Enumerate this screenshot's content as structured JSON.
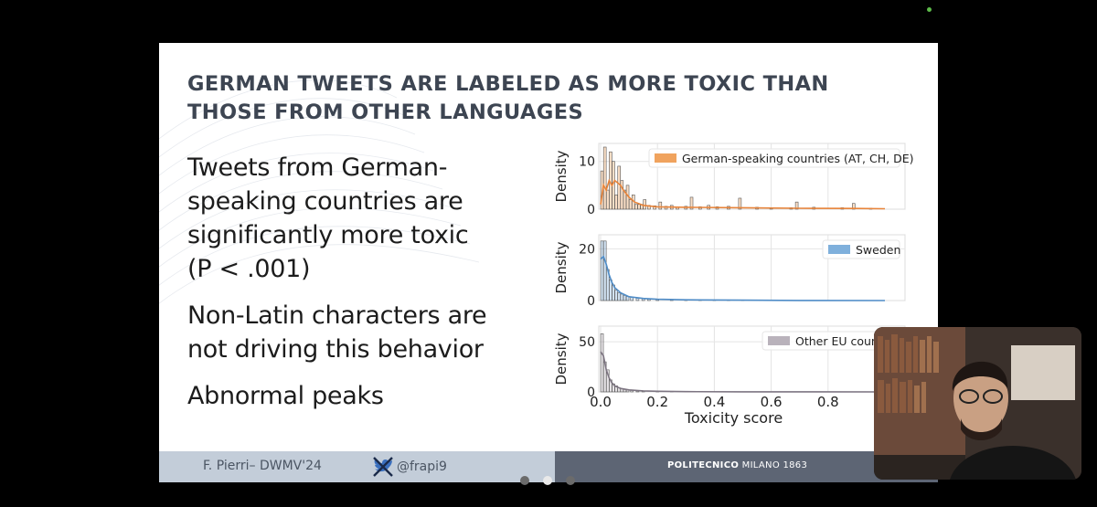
{
  "slide": {
    "title": "GERMAN TWEETS ARE LABELED AS MORE TOXIC THAN THOSE FROM OTHER LANGUAGES",
    "bullets": [
      "Tweets from German-speaking countries are significantly more toxic (P < .001)",
      "Non-Latin characters are not driving this behavior",
      "Abnormal peaks"
    ],
    "footer": {
      "author": "F. Pierri– DWMV'24",
      "handle": "@frapi9",
      "institution_bold": "POLITECNICO",
      "institution_rest": " MILANO 1863"
    }
  },
  "pagination": {
    "count": 3,
    "active": 2
  },
  "colors": {
    "title": "#3d4552",
    "german": "#f0a35e",
    "sweden": "#7fb0dc",
    "other": "#b9b2bb",
    "footer_left": "#c3cdd9",
    "footer_right": "#5d6574"
  },
  "chart_data": {
    "type": "histogram",
    "xlabel": "Toxicity score",
    "xlim": [
      0,
      1
    ],
    "xticks": [
      "0.0",
      "0.2",
      "0.4",
      "0.6",
      "0.8"
    ],
    "grid": true,
    "legend_position": "top-right",
    "panels": [
      {
        "legend": "German-speaking countries (AT, CH, DE)",
        "ylabel": "Density",
        "yticks": [
          "0",
          "10"
        ],
        "ylim": [
          0,
          13
        ],
        "bins": [
          [
            0.005,
            8
          ],
          [
            0.015,
            14
          ],
          [
            0.025,
            4
          ],
          [
            0.035,
            12
          ],
          [
            0.045,
            10
          ],
          [
            0.055,
            3
          ],
          [
            0.065,
            9
          ],
          [
            0.075,
            6
          ],
          [
            0.085,
            4
          ],
          [
            0.095,
            5
          ],
          [
            0.105,
            2
          ],
          [
            0.115,
            3
          ],
          [
            0.125,
            1
          ],
          [
            0.135,
            1
          ],
          [
            0.145,
            1
          ],
          [
            0.155,
            2
          ],
          [
            0.17,
            0.8
          ],
          [
            0.19,
            0.7
          ],
          [
            0.21,
            1.5
          ],
          [
            0.23,
            0.6
          ],
          [
            0.25,
            0.8
          ],
          [
            0.27,
            0.5
          ],
          [
            0.3,
            0.6
          ],
          [
            0.32,
            2.5
          ],
          [
            0.35,
            0.5
          ],
          [
            0.38,
            0.8
          ],
          [
            0.41,
            0.5
          ],
          [
            0.45,
            0.6
          ],
          [
            0.49,
            2.3
          ],
          [
            0.55,
            0.4
          ],
          [
            0.6,
            0.3
          ],
          [
            0.67,
            0.3
          ],
          [
            0.69,
            1.5
          ],
          [
            0.75,
            0.4
          ],
          [
            0.85,
            0.3
          ],
          [
            0.89,
            1.2
          ],
          [
            0.95,
            0.2
          ]
        ],
        "kde": [
          [
            0,
            1
          ],
          [
            0.01,
            5
          ],
          [
            0.02,
            4
          ],
          [
            0.03,
            6
          ],
          [
            0.04,
            5
          ],
          [
            0.05,
            6
          ],
          [
            0.06,
            5.5
          ],
          [
            0.07,
            5
          ],
          [
            0.08,
            4
          ],
          [
            0.1,
            2.5
          ],
          [
            0.12,
            1.5
          ],
          [
            0.15,
            0.8
          ],
          [
            0.2,
            0.5
          ],
          [
            0.3,
            0.4
          ],
          [
            0.5,
            0.3
          ],
          [
            0.7,
            0.2
          ],
          [
            0.9,
            0.15
          ],
          [
            1,
            0.1
          ]
        ]
      },
      {
        "legend": "Sweden",
        "ylabel": "Density",
        "yticks": [
          "0",
          "20"
        ],
        "ylim": [
          0,
          24
        ],
        "bins": [
          [
            0.005,
            23
          ],
          [
            0.015,
            23
          ],
          [
            0.025,
            12
          ],
          [
            0.035,
            8
          ],
          [
            0.045,
            6
          ],
          [
            0.055,
            4
          ],
          [
            0.065,
            3
          ],
          [
            0.075,
            2.5
          ],
          [
            0.085,
            2
          ],
          [
            0.095,
            1.6
          ],
          [
            0.11,
            1.2
          ],
          [
            0.13,
            0.9
          ],
          [
            0.15,
            0.8
          ],
          [
            0.17,
            0.6
          ],
          [
            0.2,
            0.5
          ],
          [
            0.25,
            0.4
          ],
          [
            0.3,
            0.3
          ],
          [
            0.35,
            0.3
          ],
          [
            0.4,
            0.2
          ],
          [
            0.45,
            0.2
          ],
          [
            0.5,
            0.15
          ],
          [
            0.6,
            0.1
          ],
          [
            0.7,
            0.05
          ]
        ],
        "kde": [
          [
            0,
            16
          ],
          [
            0.01,
            17
          ],
          [
            0.02,
            14
          ],
          [
            0.03,
            10
          ],
          [
            0.04,
            7
          ],
          [
            0.05,
            5
          ],
          [
            0.07,
            3
          ],
          [
            0.1,
            1.5
          ],
          [
            0.15,
            0.8
          ],
          [
            0.2,
            0.5
          ],
          [
            0.3,
            0.3
          ],
          [
            0.5,
            0.15
          ],
          [
            0.7,
            0.05
          ],
          [
            1,
            0
          ]
        ]
      },
      {
        "legend": "Other EU countries",
        "ylabel": "Density",
        "yticks": [
          "0",
          "50"
        ],
        "ylim": [
          0,
          62
        ],
        "bins": [
          [
            0.005,
            58
          ],
          [
            0.015,
            30
          ],
          [
            0.025,
            22
          ],
          [
            0.035,
            12
          ],
          [
            0.045,
            8
          ],
          [
            0.055,
            6
          ],
          [
            0.065,
            4
          ],
          [
            0.075,
            3
          ],
          [
            0.085,
            2.5
          ],
          [
            0.095,
            2
          ],
          [
            0.11,
            1.5
          ],
          [
            0.13,
            1
          ],
          [
            0.15,
            0.8
          ],
          [
            0.2,
            0.5
          ],
          [
            0.25,
            0.4
          ],
          [
            0.3,
            0.3
          ],
          [
            0.4,
            0.2
          ],
          [
            0.5,
            0.1
          ],
          [
            0.6,
            0.05
          ]
        ],
        "kde": [
          [
            0,
            40
          ],
          [
            0.01,
            36
          ],
          [
            0.02,
            22
          ],
          [
            0.03,
            14
          ],
          [
            0.04,
            9
          ],
          [
            0.05,
            6
          ],
          [
            0.07,
            3.5
          ],
          [
            0.1,
            2
          ],
          [
            0.15,
            1
          ],
          [
            0.2,
            0.6
          ],
          [
            0.3,
            0.3
          ],
          [
            0.5,
            0.1
          ],
          [
            1,
            0
          ]
        ]
      }
    ]
  }
}
